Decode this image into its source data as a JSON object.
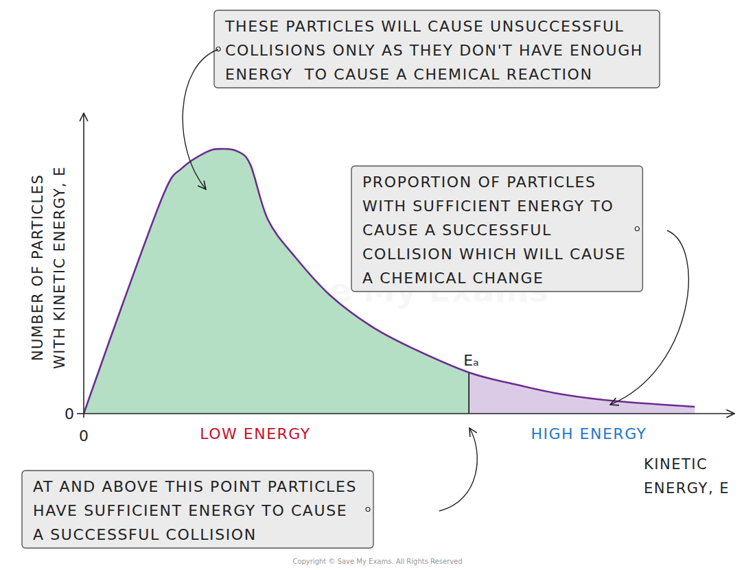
{
  "chart_data": {
    "type": "area",
    "x": [
      0,
      0.61,
      1.24,
      1.51,
      1.88,
      2.09,
      2.35,
      2.56,
      2.83,
      3.25,
      3.78,
      4.41,
      5.04,
      5.92,
      6.62,
      7.36,
      8.21,
      9.39
    ],
    "values": [
      0,
      3.72,
      7.37,
      8.17,
      8.7,
      8.81,
      8.74,
      8.29,
      6.46,
      5.21,
      3.95,
      2.92,
      2.19,
      1.37,
      0.98,
      0.64,
      0.41,
      0.23
    ],
    "xlim": [
      0,
      10
    ],
    "ylim": [
      0,
      10
    ],
    "xticks": [
      0
    ],
    "yticks": [
      0
    ],
    "grid": false,
    "color": "#6b2c91",
    "x_label": [
      "KINETIC",
      "ENERGY, E"
    ],
    "y_label": [
      "NUMBER OF PARTICLES",
      "WITH KINETIC ENERGY, E"
    ],
    "threshold": {
      "value": 5.92,
      "label": "Eₐ"
    },
    "region_labels": [
      "LOW ENERGY",
      "HIGH ENERGY"
    ],
    "annotations": [
      {
        "lines": [
          "THESE PARTICLES WILL CAUSE UNSUCCESSFUL",
          "COLLISIONS ONLY AS THEY DON'T HAVE ENOUGH",
          "ENERGY  TO CAUSE A CHEMICAL REACTION"
        ]
      },
      {
        "lines": [
          "PROPORTION OF PARTICLES",
          "WITH SUFFICIENT ENERGY TO",
          "CAUSE A SUCCESSFUL",
          "COLLISION WHICH WILL CAUSE",
          "A CHEMICAL CHANGE"
        ]
      },
      {
        "lines": [
          "AT AND ABOVE THIS POINT PARTICLES",
          "HAVE SUFFICIENT ENERGY TO CAUSE",
          "A SUCCESSFUL COLLISION"
        ]
      }
    ],
    "watermark": "Save My Exams",
    "copyright": "Copyright © Save My Exams. All Rights Reserved"
  }
}
